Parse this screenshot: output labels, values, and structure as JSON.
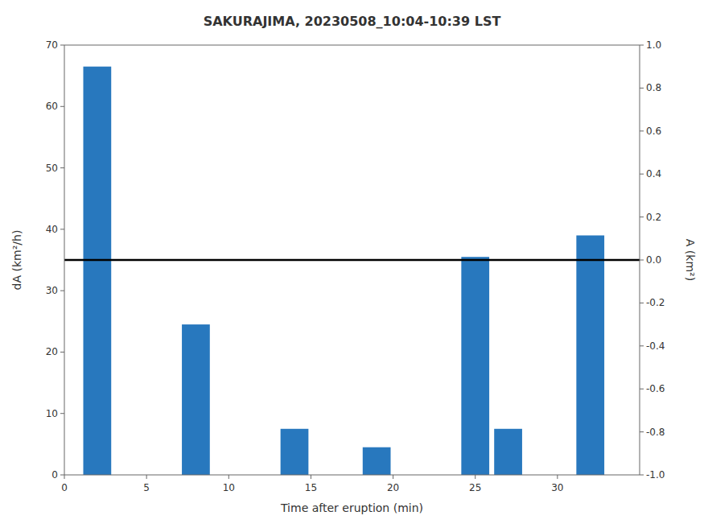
{
  "chart_data": {
    "type": "bar",
    "title": "SAKURAJIMA, 20230508_10:04-10:39 LST",
    "xlabel": "Time after eruption (min)",
    "ylabel": "dA (km²/h)",
    "y2label": "A (km²)",
    "x": [
      2,
      8,
      14,
      19,
      25,
      27,
      32
    ],
    "values": [
      66.5,
      24.5,
      7.5,
      4.5,
      35.5,
      7.5,
      39.0
    ],
    "color": "#2878BE",
    "hline": 35.0,
    "xlim": [
      0,
      35
    ],
    "xticks": [
      0,
      5,
      10,
      15,
      20,
      25,
      30
    ],
    "ylim": [
      0,
      70
    ],
    "yticks": [
      0,
      10,
      20,
      30,
      40,
      50,
      60,
      70
    ],
    "y2lim": [
      -1,
      1
    ],
    "y2ticks": [
      {
        "value": -1.0,
        "label": "-1.0"
      },
      -0.8,
      -0.6,
      -0.4,
      -0.2,
      {
        "value": 0.0,
        "label": "0.0"
      },
      0.2,
      0.4,
      0.6,
      0.8,
      {
        "value": 1.0,
        "label": "1.0"
      }
    ],
    "grid": false
  }
}
